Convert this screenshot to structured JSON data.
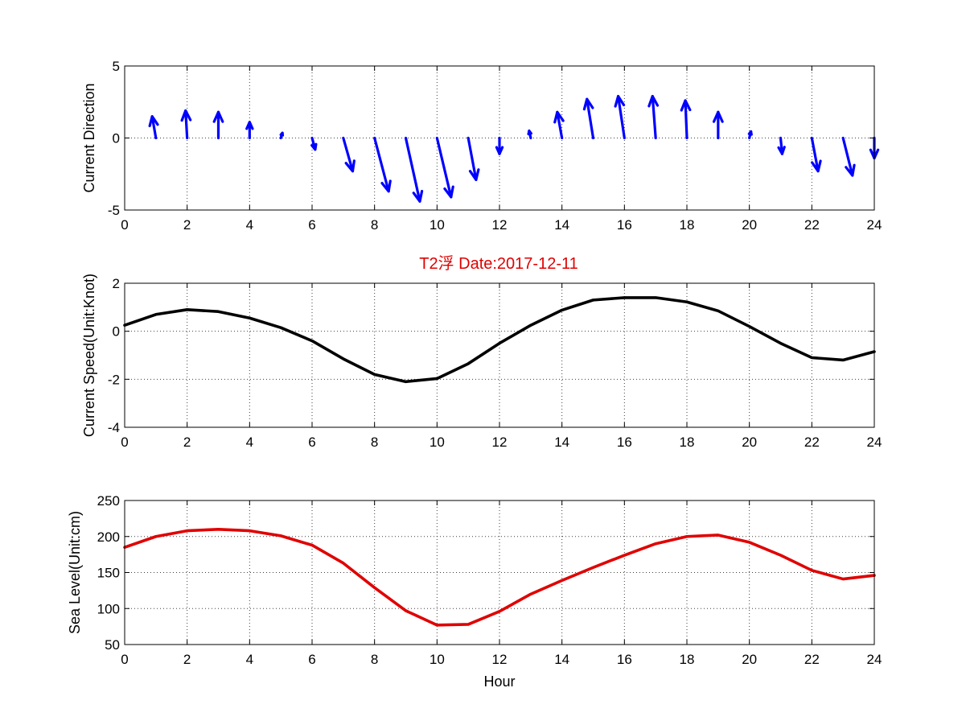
{
  "chart_data": [
    {
      "type": "quiver",
      "title": "",
      "xlabel": "",
      "ylabel": "Current Direction",
      "xlim": [
        0,
        24
      ],
      "ylim": [
        -5,
        5
      ],
      "xticks": [
        0,
        2,
        4,
        6,
        8,
        10,
        12,
        14,
        16,
        18,
        20,
        22,
        24
      ],
      "yticks": [
        -5,
        0,
        5
      ],
      "grid": true,
      "color": "#0000ff",
      "vectors": [
        {
          "x": 1,
          "u": -0.12,
          "v": 1.5
        },
        {
          "x": 2,
          "u": -0.05,
          "v": 1.9
        },
        {
          "x": 3,
          "u": 0.0,
          "v": 1.8
        },
        {
          "x": 4,
          "u": 0.0,
          "v": 1.1
        },
        {
          "x": 5,
          "u": 0.05,
          "v": 0.35
        },
        {
          "x": 6,
          "u": 0.1,
          "v": -0.8
        },
        {
          "x": 7,
          "u": 0.3,
          "v": -2.3
        },
        {
          "x": 8,
          "u": 0.45,
          "v": -3.7
        },
        {
          "x": 9,
          "u": 0.45,
          "v": -4.4
        },
        {
          "x": 10,
          "u": 0.45,
          "v": -4.1
        },
        {
          "x": 11,
          "u": 0.25,
          "v": -2.9
        },
        {
          "x": 12,
          "u": 0.0,
          "v": -1.1
        },
        {
          "x": 13,
          "u": -0.05,
          "v": 0.5
        },
        {
          "x": 14,
          "u": -0.15,
          "v": 1.8
        },
        {
          "x": 15,
          "u": -0.2,
          "v": 2.7
        },
        {
          "x": 16,
          "u": -0.2,
          "v": 2.9
        },
        {
          "x": 17,
          "u": -0.1,
          "v": 2.9
        },
        {
          "x": 18,
          "u": -0.05,
          "v": 2.6
        },
        {
          "x": 19,
          "u": 0.0,
          "v": 1.8
        },
        {
          "x": 20,
          "u": 0.05,
          "v": 0.45
        },
        {
          "x": 21,
          "u": 0.05,
          "v": -1.1
        },
        {
          "x": 22,
          "u": 0.2,
          "v": -2.3
        },
        {
          "x": 23,
          "u": 0.3,
          "v": -2.6
        },
        {
          "x": 24,
          "u": 0.0,
          "v": -1.4
        }
      ]
    },
    {
      "type": "line",
      "title": "T2浮    Date:2017-12-11",
      "title_color": "#e00000",
      "xlabel": "",
      "ylabel": "Current Speed(Unit:Knot)",
      "xlim": [
        0,
        24
      ],
      "ylim": [
        -4,
        2
      ],
      "xticks": [
        0,
        2,
        4,
        6,
        8,
        10,
        12,
        14,
        16,
        18,
        20,
        22,
        24
      ],
      "yticks": [
        -4,
        -2,
        0,
        2
      ],
      "grid": true,
      "series": [
        {
          "color": "#000000",
          "x": [
            0,
            1,
            2,
            3,
            4,
            5,
            6,
            7,
            8,
            9,
            10,
            11,
            12,
            13,
            14,
            15,
            16,
            17,
            18,
            19,
            20,
            21,
            22,
            23,
            24
          ],
          "values": [
            0.25,
            0.7,
            0.9,
            0.82,
            0.55,
            0.15,
            -0.4,
            -1.15,
            -1.8,
            -2.1,
            -1.97,
            -1.35,
            -0.5,
            0.25,
            0.88,
            1.3,
            1.4,
            1.4,
            1.22,
            0.85,
            0.2,
            -0.5,
            -1.1,
            -1.2,
            -0.85
          ]
        }
      ]
    },
    {
      "type": "line",
      "title": "",
      "xlabel": "Hour",
      "ylabel": "Sea Level(Unit:cm)",
      "xlim": [
        0,
        24
      ],
      "ylim": [
        50,
        250
      ],
      "xticks": [
        0,
        2,
        4,
        6,
        8,
        10,
        12,
        14,
        16,
        18,
        20,
        22,
        24
      ],
      "yticks": [
        50,
        100,
        150,
        200,
        250
      ],
      "grid": true,
      "series": [
        {
          "color": "#e00000",
          "x": [
            0,
            1,
            2,
            3,
            4,
            5,
            6,
            7,
            8,
            9,
            10,
            11,
            12,
            13,
            14,
            15,
            16,
            17,
            18,
            19,
            20,
            21,
            22,
            23,
            24
          ],
          "values": [
            185,
            200,
            208,
            210,
            208,
            201,
            188,
            163,
            129,
            97,
            77,
            78,
            96,
            120,
            139,
            157,
            174,
            190,
            200,
            202,
            192,
            174,
            153,
            141,
            146
          ]
        }
      ]
    }
  ]
}
